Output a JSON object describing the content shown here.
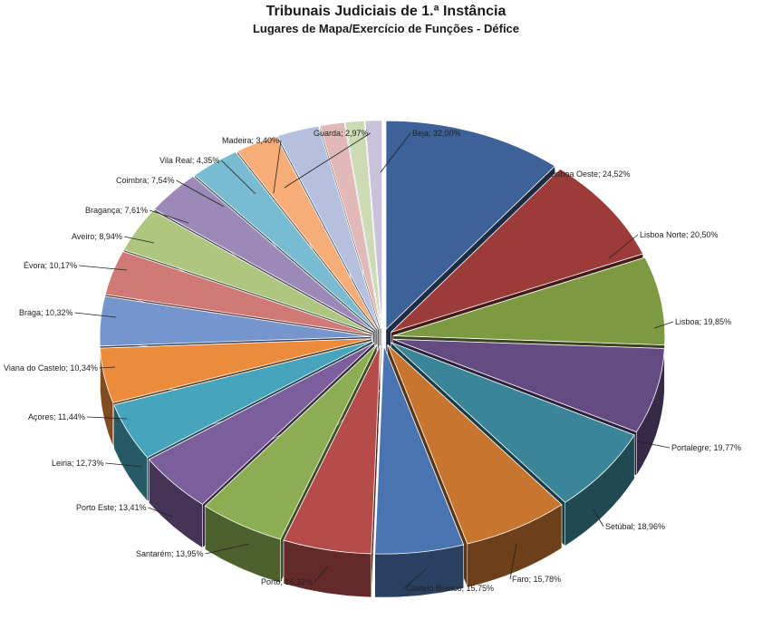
{
  "chart_data": {
    "type": "pie",
    "title": "Tribunais Judiciais de 1.ª Instância",
    "subtitle": "Lugares de Mapa/Exercício de Funções - Défice",
    "label_format": "{category}; {value}",
    "series": [
      {
        "category": "Beja",
        "value": "32,00%",
        "v": 32.0,
        "color": "#3D6299"
      },
      {
        "category": "Lisboa Oeste",
        "value": "24,52%",
        "v": 24.52,
        "color": "#9B3C3A"
      },
      {
        "category": "Lisboa Norte",
        "value": "20,50%",
        "v": 20.5,
        "color": "#7D9A43"
      },
      {
        "category": "Lisboa",
        "value": "19,85%",
        "v": 19.85,
        "color": "#644C82"
      },
      {
        "category": "Portalegre",
        "value": "19,77%",
        "v": 19.77,
        "color": "#3A8597"
      },
      {
        "category": "Setúbal",
        "value": "18,96%",
        "v": 18.96,
        "color": "#C87530"
      },
      {
        "category": "Faro",
        "value": "15,78%",
        "v": 15.78,
        "color": "#4A74B1"
      },
      {
        "category": "Castelo Branco",
        "value": "15,75%",
        "v": 15.75,
        "color": "#B54C4A"
      },
      {
        "category": "Porto",
        "value": "15,32%",
        "v": 15.32,
        "color": "#8CAE52"
      },
      {
        "category": "Santarém",
        "value": "13,95%",
        "v": 13.95,
        "color": "#7D5E9C"
      },
      {
        "category": "Porto Este",
        "value": "13,41%",
        "v": 13.41,
        "color": "#46A4BC"
      },
      {
        "category": "Leiria",
        "value": "12,73%",
        "v": 12.73,
        "color": "#EC8B3C"
      },
      {
        "category": "Açores",
        "value": "11,44%",
        "v": 11.44,
        "color": "#7595CC"
      },
      {
        "category": "Viana do Castelo",
        "value": "10,34%",
        "v": 10.34,
        "color": "#D07976"
      },
      {
        "category": "Braga",
        "value": "10,32%",
        "v": 10.32,
        "color": "#AEC67F"
      },
      {
        "category": "Évora",
        "value": "10,17%",
        "v": 10.17,
        "color": "#9B89B7"
      },
      {
        "category": "Aveiro",
        "value": "8,94%",
        "v": 8.94,
        "color": "#79BBD0"
      },
      {
        "category": "Bragança",
        "value": "7,61%",
        "v": 7.61,
        "color": "#F8AD79"
      },
      {
        "category": "Coimbra",
        "value": "7,54%",
        "v": 7.54,
        "color": "#B5C0DE"
      },
      {
        "category": "Vila Real",
        "value": "4,35%",
        "v": 4.35,
        "color": "#E0B9B8"
      },
      {
        "category": "Madeira",
        "value": "3,40%",
        "v": 3.4,
        "color": "#CCDBB3"
      },
      {
        "category": "Guarda",
        "value": "2,97%",
        "v": 2.97,
        "color": "#C9C2DA"
      }
    ]
  }
}
